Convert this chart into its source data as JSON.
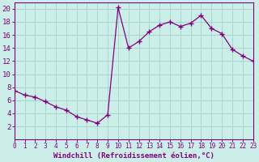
{
  "x": [
    0,
    1,
    2,
    3,
    4,
    5,
    6,
    7,
    8,
    9,
    10,
    11,
    12,
    13,
    14,
    15,
    16,
    17,
    18,
    19,
    20,
    21,
    22,
    23
  ],
  "y": [
    7.5,
    6.8,
    6.5,
    5.8,
    5.0,
    4.5,
    3.5,
    3.0,
    2.5,
    3.8,
    20.2,
    14.0,
    15.0,
    16.5,
    17.5,
    18.0,
    17.3,
    17.8,
    19.0,
    17.0,
    16.2,
    13.8,
    12.8,
    12.0
  ],
  "line_color": "#800080",
  "marker": "+",
  "marker_size": 4,
  "background_color": "#cceee8",
  "grid_color": "#aad4ce",
  "xlabel": "Windchill (Refroidissement éolien,°C)",
  "ylabel": "",
  "title": "",
  "xlim": [
    0,
    23
  ],
  "ylim": [
    0,
    21
  ],
  "yticks": [
    2,
    4,
    6,
    8,
    10,
    12,
    14,
    16,
    18,
    20
  ],
  "xticks": [
    0,
    1,
    2,
    3,
    4,
    5,
    6,
    7,
    8,
    9,
    10,
    11,
    12,
    13,
    14,
    15,
    16,
    17,
    18,
    19,
    20,
    21,
    22,
    23
  ],
  "spine_color": "#800080",
  "tick_color": "#800080",
  "label_color": "#800080",
  "xlabel_fontsize": 6.5,
  "tick_fontsize_x": 5.5,
  "tick_fontsize_y": 6.5
}
